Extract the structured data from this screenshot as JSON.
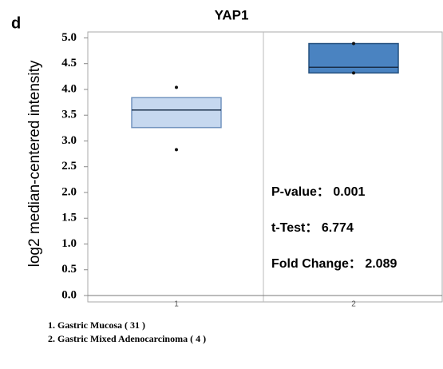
{
  "panel_label": "d",
  "chart_data": {
    "type": "box",
    "title": "YAP1",
    "y_label": "log2 median-centered intensity",
    "categories": [
      "1",
      "2"
    ],
    "boxes": [
      {
        "min": 2.83,
        "q1": 3.26,
        "median": 3.6,
        "q3": 3.84,
        "max": 4.04,
        "color": "#c6d8ef",
        "edge": "#7294bf"
      },
      {
        "min": 4.32,
        "q1": 4.32,
        "median": 4.43,
        "q3": 4.89,
        "max": 4.89,
        "color": "#4a83c1",
        "edge": "#24507f"
      }
    ],
    "ylim": [
      0,
      5.1
    ],
    "yticks": [
      {
        "value": 0,
        "label": "0.0"
      },
      0.5,
      {
        "value": 1,
        "label": "1.0"
      },
      1.5,
      {
        "value": 2,
        "label": "2.0"
      },
      2.5,
      {
        "value": 3,
        "label": "3.0"
      },
      3.5,
      {
        "value": 4,
        "label": "4.0"
      },
      4.5,
      {
        "value": 5,
        "label": "5.0"
      }
    ],
    "annotations": [
      "P-value： 0.001",
      "t-Test： 6.774",
      "Fold Change： 2.089"
    ],
    "legend": [
      "1. Gastric Mucosa ( 31 )",
      "2. Gastric Mixed Adenocarcinoma ( 4 )"
    ]
  }
}
